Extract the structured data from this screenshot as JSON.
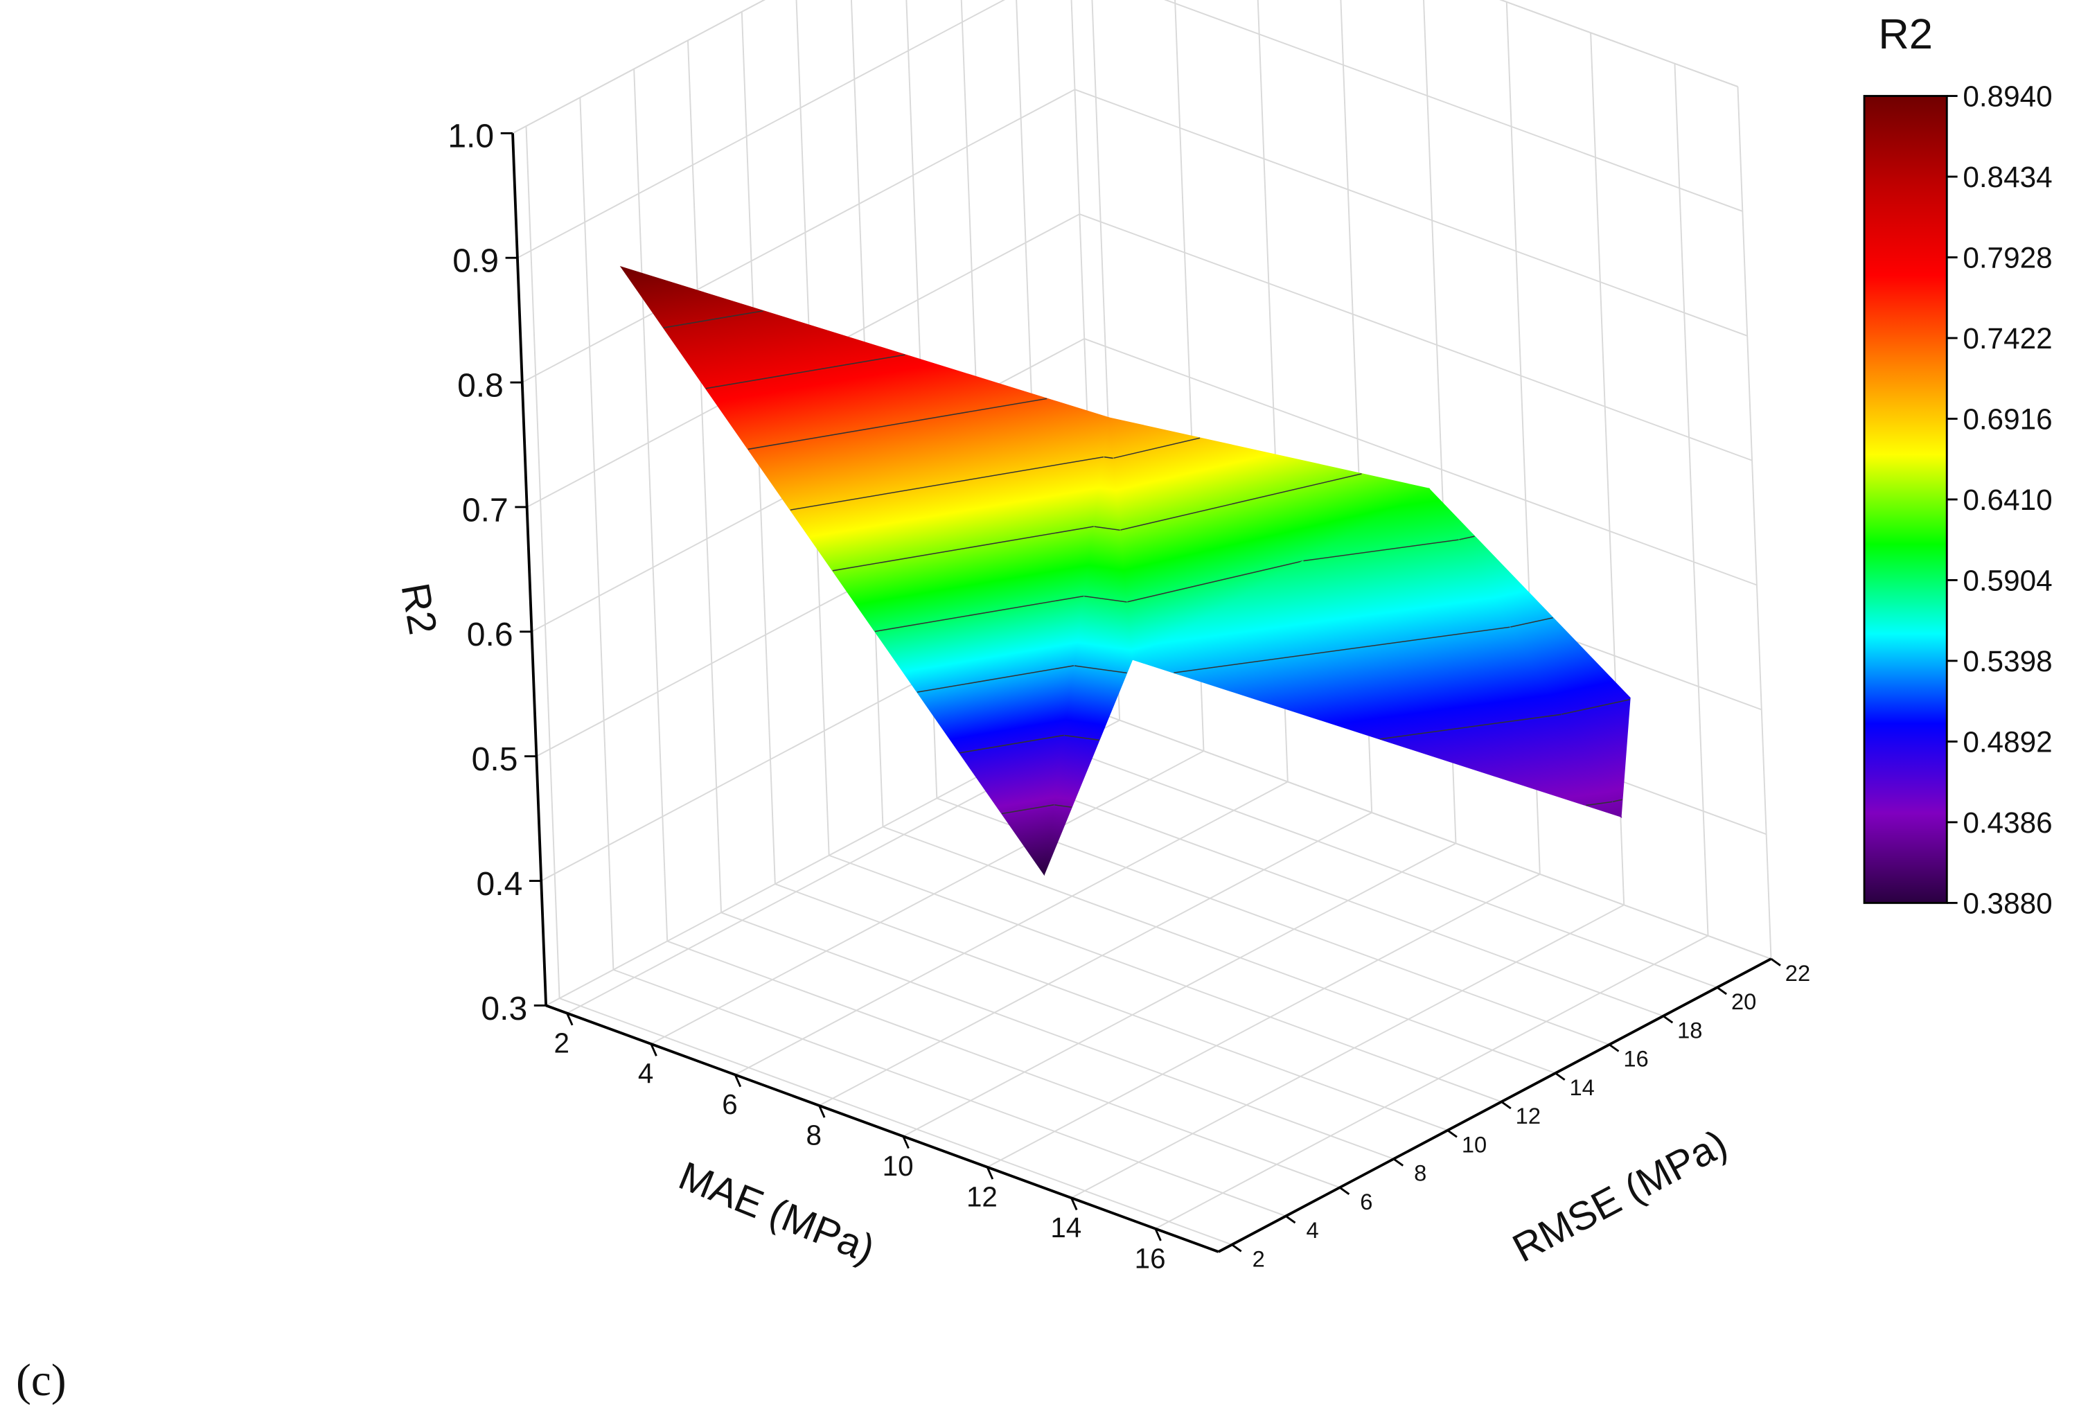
{
  "chart_data": {
    "type": "surface3d",
    "xlabel": "MAE (MPa)",
    "ylabel": "RMSE (MPa)",
    "zlabel": "R2",
    "colorbar_title": "R2",
    "x": [
      3,
      8,
      8,
      9,
      11,
      16,
      15
    ],
    "y": [
      3,
      10,
      13,
      12,
      20,
      19,
      21
    ],
    "z": [
      0.894,
      0.388,
      0.72,
      0.55,
      0.62,
      0.43,
      0.49
    ],
    "xlim": [
      1.5,
      17.5
    ],
    "ylim": [
      1.5,
      22
    ],
    "zlim": [
      0.3,
      1
    ],
    "xticks": [
      2,
      4,
      6,
      8,
      10,
      12,
      14,
      16
    ],
    "yticks": [
      2,
      4,
      6,
      8,
      10,
      12,
      14,
      16,
      18,
      20,
      22
    ],
    "zticks": [
      0.3,
      0.4,
      0.5,
      0.6,
      0.7,
      0.8,
      0.9,
      {
        "value": 1,
        "label": "1.0"
      }
    ],
    "colorbar_ticks": [
      {
        "value": 0.388,
        "label": "0.3880"
      },
      0.4386,
      0.4892,
      0.5398,
      0.5904,
      {
        "value": 0.641,
        "label": "0.6410"
      },
      0.6916,
      0.7422,
      0.7928,
      0.8434,
      {
        "value": 0.894,
        "label": "0.8940"
      }
    ],
    "colormap": [
      "#2a0040",
      "#8000c0",
      "#0000ff",
      "#00ffff",
      "#00ff00",
      "#ffff00",
      "#ff8000",
      "#ff0000",
      "#c00000",
      "#700000"
    ],
    "grid": true
  },
  "caption": "(c)"
}
